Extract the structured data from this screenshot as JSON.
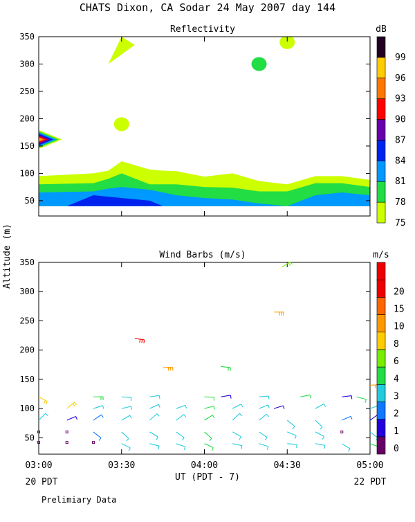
{
  "page": {
    "title": "CHATS Dixon, CA  Sodar  24 May 2007  day 144",
    "ylabel": "Altitude (m)",
    "xlabel": "UT  (PDT - 7)",
    "x_ticks": [
      "03:00",
      "03:30",
      "04:00",
      "04:30",
      "05:00"
    ],
    "x_left_note": "20 PDT",
    "x_right_note": "22 PDT",
    "footer": "Prelimiary Data"
  },
  "chart_data": [
    {
      "type": "heatmap",
      "title": "Reflectivity",
      "colorbar_unit": "dB",
      "xlim": [
        3.0,
        5.0
      ],
      "ylim": [
        22,
        350
      ],
      "yticks": [
        50,
        100,
        150,
        200,
        250,
        300,
        350
      ],
      "levels": [
        {
          "value": "75",
          "color": "#ccff00"
        },
        {
          "value": "78",
          "color": "#22dd44"
        },
        {
          "value": "81",
          "color": "#0099ff"
        },
        {
          "value": "84",
          "color": "#0022ee"
        },
        {
          "value": "87",
          "color": "#6600aa"
        },
        {
          "value": "90",
          "color": "#ff0000"
        },
        {
          "value": "93",
          "color": "#ff7700"
        },
        {
          "value": "96",
          "color": "#ffcc00"
        },
        {
          "value": "99",
          "color": "#220022"
        }
      ],
      "bands": [
        {
          "level": "75",
          "x": [
            3.0,
            3.33,
            3.42,
            3.5,
            3.67,
            3.75,
            3.83,
            4.0,
            4.17,
            4.33,
            4.5,
            4.67,
            4.83,
            5.0
          ],
          "top": [
            95,
            100,
            105,
            122,
            107,
            105,
            104,
            94,
            100,
            86,
            80,
            95,
            95,
            88
          ]
        },
        {
          "level": "78",
          "x": [
            3.0,
            3.33,
            3.42,
            3.5,
            3.67,
            3.75,
            3.83,
            4.0,
            4.17,
            4.33,
            4.5,
            4.67,
            4.83,
            5.0
          ],
          "top": [
            80,
            82,
            90,
            100,
            80,
            80,
            80,
            75,
            74,
            67,
            67,
            82,
            82,
            75
          ]
        },
        {
          "level": "81",
          "x": [
            3.0,
            3.33,
            3.42,
            3.5,
            3.67,
            3.75,
            3.83,
            4.0,
            4.17,
            4.33,
            4.5,
            4.67,
            4.83,
            5.0
          ],
          "top": [
            65,
            67,
            72,
            75,
            70,
            65,
            60,
            55,
            52,
            45,
            40,
            60,
            65,
            60
          ]
        }
      ],
      "patches": [
        {
          "level": "84",
          "x": [
            3.17,
            3.33,
            3.5,
            3.67,
            3.75
          ],
          "y": [
            40,
            60,
            55,
            50,
            40
          ]
        },
        {
          "level": "75",
          "x": [
            3.42,
            3.5,
            3.58
          ],
          "y": [
            300,
            350,
            335
          ],
          "note": "top blob"
        },
        {
          "level": "75",
          "x": [
            3.5
          ],
          "y": [
            190
          ],
          "note": "mid blob"
        },
        {
          "level": "75",
          "x": [
            4.5
          ],
          "y": [
            340
          ],
          "note": "small top blob"
        },
        {
          "level": "78",
          "x": [
            4.33
          ],
          "y": [
            300
          ],
          "note": "green core near 04:20"
        }
      ],
      "hotspot": {
        "x": 3.0,
        "y": 162,
        "levels": [
          "75",
          "78",
          "81",
          "84",
          "87",
          "90",
          "93",
          "96"
        ]
      }
    },
    {
      "type": "scatter",
      "title": "Wind Barbs (m/s)",
      "colorbar_unit": "m/s",
      "xlim": [
        3.0,
        5.0
      ],
      "ylim": [
        22,
        350
      ],
      "yticks": [
        50,
        100,
        150,
        200,
        250,
        300,
        350
      ],
      "levels": [
        {
          "value": "0",
          "color": "#660066"
        },
        {
          "value": "1",
          "color": "#2200dd"
        },
        {
          "value": "2",
          "color": "#1177ff"
        },
        {
          "value": "3",
          "color": "#22ccdd"
        },
        {
          "value": "4",
          "color": "#22dd44"
        },
        {
          "value": "6",
          "color": "#77ee00"
        },
        {
          "value": "8",
          "color": "#ffcc00"
        },
        {
          "value": "10",
          "color": "#ff9900"
        },
        {
          "value": "15",
          "color": "#ff6600"
        },
        {
          "value": "20",
          "color": "#ee0000"
        },
        {
          "value": "",
          "color": "#ee0000"
        }
      ],
      "barbs": [
        {
          "t": 3.0,
          "z": 80,
          "speed": 3.0
        },
        {
          "t": 3.0,
          "z": 120,
          "speed": 8.0
        },
        {
          "t": 3.0,
          "z": 60,
          "speed": 0.5,
          "calm": true
        },
        {
          "t": 3.0,
          "z": 42,
          "speed": 0.5,
          "calm": true
        },
        {
          "t": 3.17,
          "z": 80,
          "speed": 1.5
        },
        {
          "t": 3.17,
          "z": 100,
          "speed": 8.0
        },
        {
          "t": 3.17,
          "z": 60,
          "speed": 0.5,
          "calm": true
        },
        {
          "t": 3.17,
          "z": 42,
          "speed": 0.5,
          "calm": true
        },
        {
          "t": 3.33,
          "z": 120,
          "speed": 5.0
        },
        {
          "t": 3.33,
          "z": 100,
          "speed": 3.0
        },
        {
          "t": 3.33,
          "z": 80,
          "speed": 2.5
        },
        {
          "t": 3.33,
          "z": 60,
          "speed": 2.5
        },
        {
          "t": 3.33,
          "z": 42,
          "speed": 0.5,
          "calm": true
        },
        {
          "t": 3.5,
          "z": 120,
          "speed": 3.0
        },
        {
          "t": 3.5,
          "z": 100,
          "speed": 3.0
        },
        {
          "t": 3.5,
          "z": 80,
          "speed": 3.0
        },
        {
          "t": 3.5,
          "z": 60,
          "speed": 3.0
        },
        {
          "t": 3.5,
          "z": 40,
          "speed": 3.0
        },
        {
          "t": 3.58,
          "z": 220,
          "speed": 20.0
        },
        {
          "t": 3.67,
          "z": 120,
          "speed": 3.0
        },
        {
          "t": 3.67,
          "z": 100,
          "speed": 3.0
        },
        {
          "t": 3.67,
          "z": 80,
          "speed": 3.0
        },
        {
          "t": 3.67,
          "z": 60,
          "speed": 3.0
        },
        {
          "t": 3.67,
          "z": 40,
          "speed": 3.0
        },
        {
          "t": 3.75,
          "z": 170,
          "speed": 10.0
        },
        {
          "t": 3.83,
          "z": 100,
          "speed": 3.0
        },
        {
          "t": 3.83,
          "z": 80,
          "speed": 3.0
        },
        {
          "t": 3.83,
          "z": 60,
          "speed": 3.0
        },
        {
          "t": 3.83,
          "z": 40,
          "speed": 3.0
        },
        {
          "t": 4.0,
          "z": 120,
          "speed": 4.0
        },
        {
          "t": 4.0,
          "z": 100,
          "speed": 4.0
        },
        {
          "t": 4.0,
          "z": 80,
          "speed": 4.0
        },
        {
          "t": 4.0,
          "z": 60,
          "speed": 4.0
        },
        {
          "t": 4.0,
          "z": 40,
          "speed": 4.0
        },
        {
          "t": 4.1,
          "z": 172,
          "speed": 5.0
        },
        {
          "t": 4.1,
          "z": 120,
          "speed": 1.5
        },
        {
          "t": 4.17,
          "z": 100,
          "speed": 3.0
        },
        {
          "t": 4.17,
          "z": 80,
          "speed": 3.0
        },
        {
          "t": 4.17,
          "z": 60,
          "speed": 3.0
        },
        {
          "t": 4.17,
          "z": 40,
          "speed": 3.0
        },
        {
          "t": 4.33,
          "z": 120,
          "speed": 3.0
        },
        {
          "t": 4.33,
          "z": 100,
          "speed": 3.0
        },
        {
          "t": 4.33,
          "z": 80,
          "speed": 3.0
        },
        {
          "t": 4.33,
          "z": 60,
          "speed": 3.0
        },
        {
          "t": 4.33,
          "z": 40,
          "speed": 3.0
        },
        {
          "t": 4.42,
          "z": 265,
          "speed": 10.0
        },
        {
          "t": 4.42,
          "z": 100,
          "speed": 1.5
        },
        {
          "t": 4.47,
          "z": 342,
          "speed": 6.0
        },
        {
          "t": 4.5,
          "z": 80,
          "speed": 3.0
        },
        {
          "t": 4.5,
          "z": 60,
          "speed": 3.0
        },
        {
          "t": 4.5,
          "z": 40,
          "speed": 3.0
        },
        {
          "t": 4.58,
          "z": 120,
          "speed": 4.0
        },
        {
          "t": 4.67,
          "z": 100,
          "speed": 3.0
        },
        {
          "t": 4.67,
          "z": 80,
          "speed": 3.0
        },
        {
          "t": 4.67,
          "z": 60,
          "speed": 3.0
        },
        {
          "t": 4.67,
          "z": 40,
          "speed": 3.0
        },
        {
          "t": 4.83,
          "z": 120,
          "speed": 1.5
        },
        {
          "t": 4.83,
          "z": 80,
          "speed": 2.0
        },
        {
          "t": 4.83,
          "z": 60,
          "speed": 0.5,
          "calm": true
        },
        {
          "t": 4.83,
          "z": 40,
          "speed": 3.0
        },
        {
          "t": 4.92,
          "z": 120,
          "speed": 4.0
        },
        {
          "t": 5.0,
          "z": 140,
          "speed": 10.0
        },
        {
          "t": 5.0,
          "z": 100,
          "speed": 3.0
        },
        {
          "t": 5.0,
          "z": 80,
          "speed": 1.5
        },
        {
          "t": 5.0,
          "z": 60,
          "speed": 3.0
        },
        {
          "t": 5.0,
          "z": 40,
          "speed": 4.0
        }
      ]
    }
  ]
}
